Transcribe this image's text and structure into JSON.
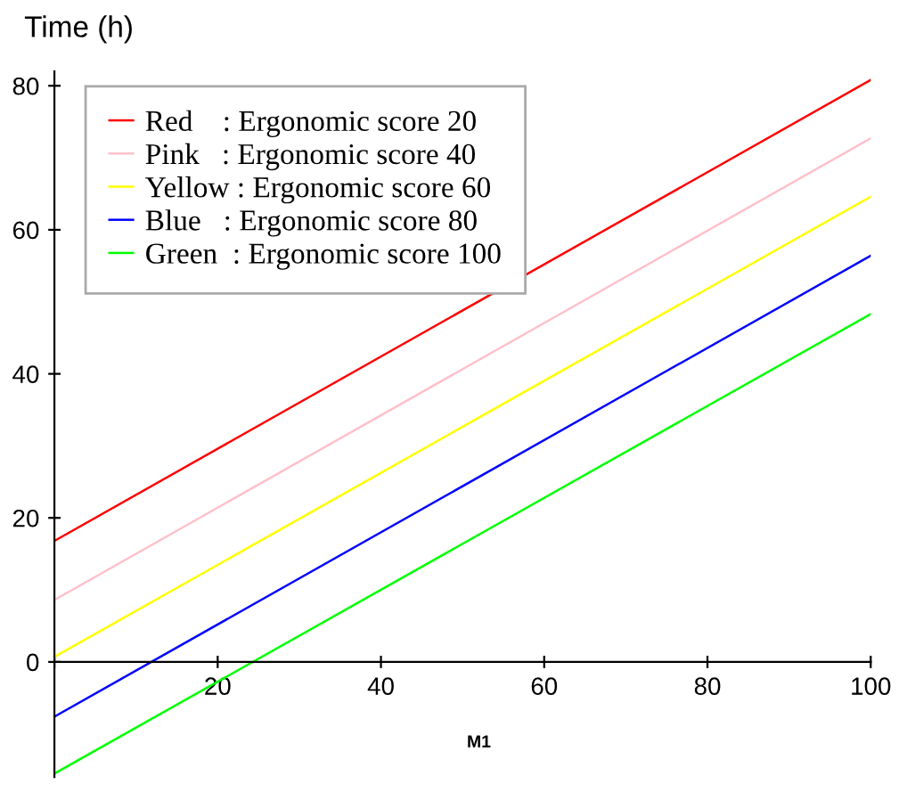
{
  "chart_data": {
    "type": "line",
    "ylabel": "Time (h)",
    "xlabel": "M1",
    "x": [
      0,
      100
    ],
    "series": [
      {
        "name": "Red    : Ergonomic score 20",
        "color": "#ff0000",
        "values": [
          16.8,
          80.8
        ]
      },
      {
        "name": "Pink   : Ergonomic score 40",
        "color": "#ffc0cb",
        "values": [
          8.6,
          72.7
        ]
      },
      {
        "name": "Yellow : Ergonomic score 60",
        "color": "#ffff00",
        "values": [
          0.7,
          64.6
        ]
      },
      {
        "name": "Blue   : Ergonomic score 80",
        "color": "#0000ff",
        "values": [
          -7.6,
          56.4
        ]
      },
      {
        "name": "Green  : Ergonomic score 100",
        "color": "#00ff00",
        "values": [
          -15.5,
          48.3
        ]
      }
    ],
    "xlim": [
      0,
      100
    ],
    "ylim": [
      -16,
      82
    ],
    "xticks": [
      {
        "value": 0,
        "label": null
      },
      20,
      40,
      60,
      80,
      100
    ],
    "yticks": [
      0,
      20,
      40,
      60,
      80
    ],
    "grid": false,
    "legend": "top left",
    "marker": "none",
    "line_style": "solid"
  }
}
